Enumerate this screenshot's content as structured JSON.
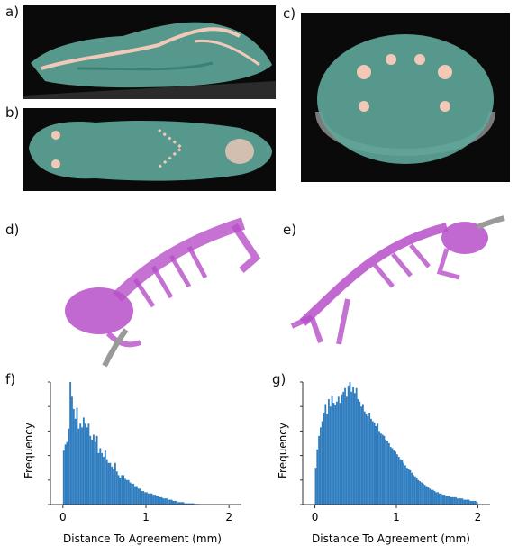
{
  "panel_labels": {
    "a": "a)",
    "b": "b)",
    "c": "c)",
    "d": "d)",
    "e": "e)",
    "f": "f)",
    "g": "g)"
  },
  "colors": {
    "bar": "#2f7dbf",
    "ct_tissue": "#5fa79a",
    "bone": "#f2c9b8",
    "skeleton": "#b64fc8"
  },
  "chart_data": [
    {
      "type": "bar",
      "panel": "f",
      "xlabel": "Distance To Agreement (mm)",
      "ylabel": "Frequency",
      "xlim": [
        -0.15,
        2.15
      ],
      "xticks": [
        "0",
        "1",
        "2"
      ],
      "bin_width": 0.02,
      "x_start": 0.0,
      "yticks_shown": false,
      "values": [
        0.44,
        0.49,
        0.51,
        0.62,
        1.0,
        0.88,
        0.78,
        0.7,
        0.79,
        0.62,
        0.66,
        0.63,
        0.71,
        0.66,
        0.63,
        0.66,
        0.56,
        0.53,
        0.57,
        0.51,
        0.56,
        0.42,
        0.46,
        0.42,
        0.39,
        0.44,
        0.37,
        0.34,
        0.34,
        0.31,
        0.29,
        0.34,
        0.27,
        0.24,
        0.22,
        0.24,
        0.24,
        0.21,
        0.2,
        0.2,
        0.18,
        0.17,
        0.17,
        0.15,
        0.15,
        0.13,
        0.13,
        0.11,
        0.11,
        0.1,
        0.1,
        0.09,
        0.09,
        0.09,
        0.08,
        0.08,
        0.07,
        0.07,
        0.06,
        0.06,
        0.05,
        0.05,
        0.05,
        0.04,
        0.04,
        0.04,
        0.03,
        0.03,
        0.03,
        0.02,
        0.02,
        0.02,
        0.02,
        0.01,
        0.01,
        0.01,
        0.01,
        0.01,
        0.01,
        0.005,
        0.005,
        0.005,
        0.003,
        0.002,
        0.001,
        0.001,
        0.001,
        0.001,
        0.0,
        0.0,
        0.0
      ]
    },
    {
      "type": "bar",
      "panel": "g",
      "xlabel": "Distance To Agreement (mm)",
      "ylabel": "Frequency",
      "xlim": [
        -0.15,
        2.15
      ],
      "xticks": [
        "0",
        "1",
        "2"
      ],
      "bin_width": 0.02,
      "x_start": 0.0,
      "yticks_shown": false,
      "values": [
        0.3,
        0.45,
        0.56,
        0.63,
        0.68,
        0.75,
        0.82,
        0.74,
        0.86,
        0.8,
        0.89,
        0.83,
        0.81,
        0.84,
        0.88,
        0.83,
        0.9,
        0.92,
        0.95,
        0.88,
        0.97,
        1.0,
        0.92,
        0.96,
        0.91,
        0.95,
        0.86,
        0.84,
        0.8,
        0.82,
        0.76,
        0.74,
        0.72,
        0.75,
        0.7,
        0.68,
        0.67,
        0.64,
        0.66,
        0.6,
        0.58,
        0.57,
        0.56,
        0.53,
        0.52,
        0.5,
        0.47,
        0.46,
        0.44,
        0.43,
        0.41,
        0.39,
        0.37,
        0.36,
        0.34,
        0.32,
        0.3,
        0.29,
        0.28,
        0.26,
        0.24,
        0.23,
        0.22,
        0.2,
        0.19,
        0.18,
        0.17,
        0.16,
        0.15,
        0.14,
        0.13,
        0.12,
        0.12,
        0.11,
        0.1,
        0.1,
        0.09,
        0.09,
        0.08,
        0.08,
        0.07,
        0.07,
        0.07,
        0.06,
        0.06,
        0.06,
        0.06,
        0.05,
        0.05,
        0.05,
        0.05,
        0.04,
        0.04,
        0.04,
        0.04,
        0.03,
        0.03,
        0.03,
        0.03,
        0.02
      ]
    }
  ]
}
